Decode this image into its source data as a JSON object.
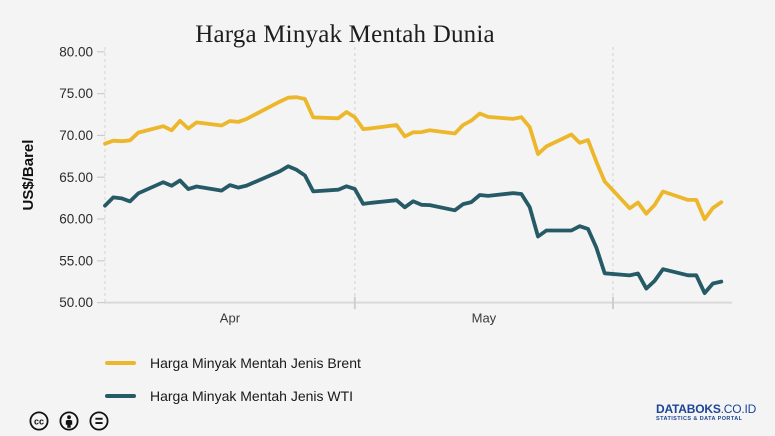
{
  "title": "Harga Minyak Mentah Dunia",
  "chart_data": {
    "type": "line",
    "title": "Harga Minyak Mentah Dunia",
    "y_axis": {
      "label": "US$/Barel",
      "min": 50,
      "max": 80,
      "ticks": [
        "80.00",
        "75.00",
        "70.00",
        "65.00",
        "60.00",
        "55.00",
        "50.00"
      ]
    },
    "x_axis": {
      "month_labels": [
        {
          "text": "Apr",
          "center_day": 15
        },
        {
          "text": "May",
          "center_day": 45.5
        }
      ],
      "boundary_days": [
        30,
        61
      ],
      "domain": [
        0,
        75.3
      ],
      "grid": "dashed-vertical-month-lines"
    },
    "x_days": [
      0,
      1,
      2,
      3,
      4,
      7,
      8,
      9,
      10,
      11,
      14,
      15,
      16,
      17,
      21,
      22,
      23,
      24,
      25,
      28,
      29,
      30,
      31,
      32,
      35,
      36,
      37,
      38,
      39,
      42,
      43,
      44,
      45,
      46,
      49,
      50,
      51,
      52,
      53,
      56,
      57,
      58,
      59,
      60,
      63,
      64,
      65,
      66,
      67,
      70,
      71,
      72,
      73,
      74
    ],
    "series": [
      {
        "name": "Harga Minyak Mentah Jenis Brent",
        "color": "#edb72c",
        "values": [
          69.01,
          69.37,
          69.31,
          69.4,
          70.34,
          71.1,
          70.61,
          71.73,
          70.83,
          71.55,
          71.18,
          71.72,
          71.62,
          71.97,
          74.04,
          74.51,
          74.57,
          74.35,
          72.15,
          72.04,
          72.8,
          72.18,
          70.75,
          70.85,
          71.24,
          69.88,
          70.37,
          70.39,
          70.62,
          70.23,
          71.24,
          71.77,
          72.62,
          72.21,
          71.97,
          72.18,
          70.99,
          67.76,
          68.69,
          70.11,
          69.11,
          69.45,
          66.87,
          64.49,
          61.28,
          61.97,
          60.63,
          61.67,
          63.29,
          62.29,
          62.29,
          59.97,
          61.31,
          62.01
        ]
      },
      {
        "name": "Harga Minyak Mentah Jenis WTI",
        "color": "#265a66",
        "values": [
          61.59,
          62.58,
          62.46,
          62.1,
          63.08,
          64.4,
          63.98,
          64.61,
          63.58,
          63.89,
          63.4,
          64.05,
          63.76,
          64.0,
          65.7,
          66.3,
          65.89,
          65.21,
          63.3,
          63.5,
          63.91,
          63.6,
          61.81,
          61.94,
          62.25,
          61.4,
          62.12,
          61.7,
          61.66,
          61.04,
          61.78,
          62.02,
          62.87,
          62.76,
          63.1,
          62.99,
          61.42,
          57.91,
          58.63,
          58.63,
          59.14,
          58.81,
          56.59,
          53.5,
          53.25,
          53.48,
          51.68,
          52.59,
          53.99,
          53.26,
          53.27,
          51.14,
          52.28,
          52.51
        ]
      }
    ],
    "legend_position": "bottom-left"
  },
  "legend": {
    "items": [
      {
        "label": "Harga Minyak Mentah Jenis Brent",
        "color": "#edb72c"
      },
      {
        "label": "Harga Minyak Mentah Jenis WTI",
        "color": "#265a66"
      }
    ]
  },
  "footer": {
    "license_icons": [
      "cc",
      "attribution",
      "no-derivatives"
    ],
    "logo": {
      "name": "DATABOKS",
      "domain": ".CO.ID",
      "tagline": "STATISTICS & DATA PORTAL",
      "color": "#1b4596"
    }
  },
  "colors": {
    "background": "#f4f4f4",
    "axis": "#d9d9d9",
    "gridline": "#dcdcdc",
    "brent": "#edb72c",
    "wti": "#265a66"
  }
}
